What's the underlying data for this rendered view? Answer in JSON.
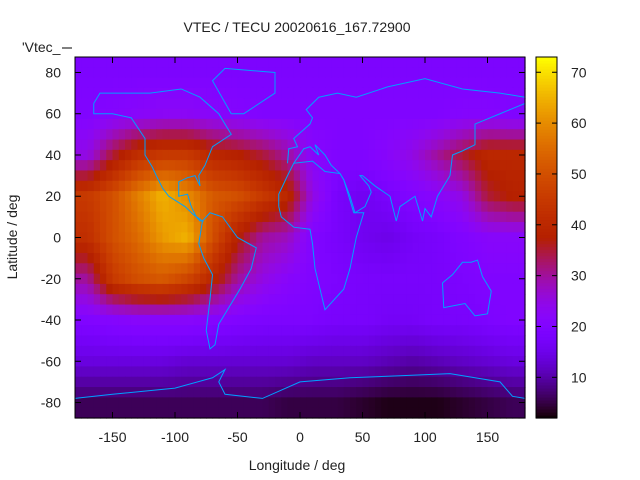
{
  "chart_data": {
    "type": "heatmap",
    "title": "VTEC / TECU 20020616_167.72900",
    "xlabel": "Longitude / deg",
    "ylabel": "Latitude / deg",
    "legend_label": "'Vtec_",
    "xlim": [
      -180,
      180
    ],
    "ylim": [
      -87.5,
      87.5
    ],
    "xticks": [
      -150,
      -100,
      -50,
      0,
      50,
      100,
      150
    ],
    "yticks": [
      80,
      60,
      40,
      20,
      0,
      -20,
      -40,
      -60,
      -80
    ],
    "cbrange": [
      2,
      73
    ],
    "cbticks": [
      10,
      20,
      30,
      40,
      50,
      60,
      70
    ],
    "grid": false,
    "colorbar": "right",
    "coastline_color": "#00a0ff",
    "grid_lons": [
      -170,
      -150,
      -130,
      -110,
      -90,
      -70,
      -50,
      -30,
      -10,
      10,
      30,
      50,
      70,
      90,
      110,
      130,
      150,
      170
    ],
    "grid_lats": [
      80,
      60,
      40,
      20,
      0,
      -20,
      -40,
      -60,
      -80
    ],
    "values": [
      [
        19,
        19,
        19,
        19,
        19,
        19,
        19,
        19,
        19,
        19,
        19,
        19,
        19,
        19,
        19,
        19,
        19,
        19
      ],
      [
        20,
        21,
        22,
        23,
        23,
        22,
        21,
        20,
        20,
        20,
        20,
        20,
        20,
        20,
        20,
        21,
        21,
        20
      ],
      [
        25,
        35,
        42,
        45,
        45,
        40,
        38,
        35,
        30,
        22,
        20,
        20,
        22,
        25,
        30,
        35,
        40,
        40
      ],
      [
        45,
        50,
        58,
        65,
        60,
        52,
        50,
        45,
        40,
        25,
        18,
        16,
        18,
        20,
        22,
        25,
        35,
        38
      ],
      [
        42,
        50,
        55,
        62,
        65,
        50,
        38,
        30,
        28,
        20,
        18,
        16,
        15,
        17,
        18,
        20,
        22,
        22
      ],
      [
        30,
        45,
        50,
        52,
        48,
        40,
        30,
        25,
        22,
        20,
        19,
        18,
        18,
        18,
        18,
        19,
        20,
        20
      ],
      [
        20,
        21,
        22,
        22,
        22,
        21,
        20,
        19,
        19,
        19,
        18,
        18,
        17,
        17,
        18,
        18,
        19,
        20
      ],
      [
        14,
        14,
        14,
        14,
        13,
        13,
        13,
        13,
        13,
        12,
        12,
        12,
        11,
        10,
        11,
        12,
        13,
        14
      ],
      [
        6,
        6,
        6,
        6,
        6,
        6,
        6,
        6,
        5,
        5,
        5,
        4,
        3,
        3,
        3,
        4,
        5,
        6
      ]
    ],
    "coastlines": [
      [
        [
          -165,
          65
        ],
        [
          -160,
          70
        ],
        [
          -140,
          70
        ],
        [
          -120,
          70
        ],
        [
          -95,
          72
        ],
        [
          -80,
          68
        ],
        [
          -65,
          60
        ],
        [
          -55,
          50
        ],
        [
          -70,
          44
        ],
        [
          -76,
          35
        ],
        [
          -81,
          30
        ],
        [
          -80,
          25
        ],
        [
          -84,
          30
        ],
        [
          -90,
          29
        ],
        [
          -97,
          27
        ],
        [
          -97,
          20
        ],
        [
          -90,
          21
        ],
        [
          -87,
          15
        ],
        [
          -83,
          10
        ],
        [
          -80,
          8
        ],
        [
          -78,
          8
        ],
        [
          -85,
          11
        ],
        [
          -92,
          15
        ],
        [
          -105,
          20
        ],
        [
          -110,
          24
        ],
        [
          -115,
          30
        ],
        [
          -118,
          34
        ],
        [
          -124,
          40
        ],
        [
          -124,
          48
        ],
        [
          -135,
          58
        ],
        [
          -150,
          60
        ],
        [
          -165,
          60
        ],
        [
          -165,
          65
        ]
      ],
      [
        [
          -78,
          8
        ],
        [
          -72,
          12
        ],
        [
          -62,
          10
        ],
        [
          -50,
          0
        ],
        [
          -35,
          -5
        ],
        [
          -39,
          -15
        ],
        [
          -48,
          -25
        ],
        [
          -58,
          -35
        ],
        [
          -65,
          -42
        ],
        [
          -68,
          -52
        ],
        [
          -72,
          -54
        ],
        [
          -75,
          -45
        ],
        [
          -72,
          -30
        ],
        [
          -70,
          -18
        ],
        [
          -77,
          -10
        ],
        [
          -81,
          -3
        ],
        [
          -78,
          8
        ]
      ],
      [
        [
          -17,
          15
        ],
        [
          -17,
          21
        ],
        [
          -10,
          30
        ],
        [
          -5,
          36
        ],
        [
          10,
          37
        ],
        [
          20,
          32
        ],
        [
          32,
          31
        ],
        [
          35,
          28
        ],
        [
          43,
          12
        ],
        [
          51,
          12
        ],
        [
          45,
          0
        ],
        [
          40,
          -15
        ],
        [
          35,
          -25
        ],
        [
          20,
          -35
        ],
        [
          18,
          -30
        ],
        [
          12,
          -15
        ],
        [
          10,
          -3
        ],
        [
          8,
          4
        ],
        [
          -5,
          5
        ],
        [
          -15,
          10
        ],
        [
          -17,
          15
        ]
      ],
      [
        [
          -10,
          36
        ],
        [
          -9,
          43
        ],
        [
          -2,
          44
        ],
        [
          -5,
          48
        ],
        [
          8,
          55
        ],
        [
          10,
          58
        ],
        [
          5,
          62
        ],
        [
          15,
          68
        ],
        [
          30,
          70
        ],
        [
          45,
          68
        ],
        [
          70,
          73
        ],
        [
          100,
          77
        ],
        [
          130,
          72
        ],
        [
          160,
          70
        ],
        [
          180,
          68
        ]
      ],
      [
        [
          180,
          65
        ],
        [
          160,
          60
        ],
        [
          140,
          55
        ],
        [
          140,
          45
        ],
        [
          130,
          42
        ],
        [
          122,
          40
        ],
        [
          120,
          30
        ],
        [
          110,
          20
        ],
        [
          105,
          10
        ],
        [
          100,
          14
        ],
        [
          98,
          8
        ],
        [
          92,
          20
        ],
        [
          80,
          15
        ],
        [
          77,
          8
        ],
        [
          72,
          20
        ],
        [
          60,
          25
        ],
        [
          50,
          30
        ],
        [
          48,
          30
        ],
        [
          55,
          25
        ],
        [
          57,
          22
        ],
        [
          52,
          15
        ],
        [
          44,
          12
        ],
        [
          40,
          20
        ],
        [
          35,
          28
        ],
        [
          32,
          31
        ],
        [
          25,
          35
        ],
        [
          20,
          40
        ],
        [
          12,
          45
        ],
        [
          15,
          40
        ],
        [
          8,
          44
        ],
        [
          3,
          43
        ],
        [
          -5,
          36
        ]
      ],
      [
        [
          114,
          -22
        ],
        [
          122,
          -18
        ],
        [
          130,
          -12
        ],
        [
          137,
          -12
        ],
        [
          142,
          -11
        ],
        [
          146,
          -19
        ],
        [
          153,
          -26
        ],
        [
          150,
          -37
        ],
        [
          140,
          -38
        ],
        [
          132,
          -32
        ],
        [
          115,
          -34
        ],
        [
          114,
          -22
        ]
      ],
      [
        [
          -180,
          -78
        ],
        [
          -150,
          -76
        ],
        [
          -100,
          -73
        ],
        [
          -70,
          -68
        ],
        [
          -60,
          -64
        ],
        [
          -65,
          -70
        ],
        [
          -60,
          -76
        ],
        [
          -30,
          -78
        ],
        [
          0,
          -70
        ],
        [
          40,
          -68
        ],
        [
          80,
          -67
        ],
        [
          120,
          -66
        ],
        [
          160,
          -70
        ],
        [
          170,
          -77
        ],
        [
          180,
          -78
        ]
      ],
      [
        [
          -55,
          60
        ],
        [
          -45,
          60
        ],
        [
          -20,
          70
        ],
        [
          -20,
          80
        ],
        [
          -60,
          82
        ],
        [
          -70,
          76
        ],
        [
          -55,
          60
        ]
      ]
    ]
  }
}
